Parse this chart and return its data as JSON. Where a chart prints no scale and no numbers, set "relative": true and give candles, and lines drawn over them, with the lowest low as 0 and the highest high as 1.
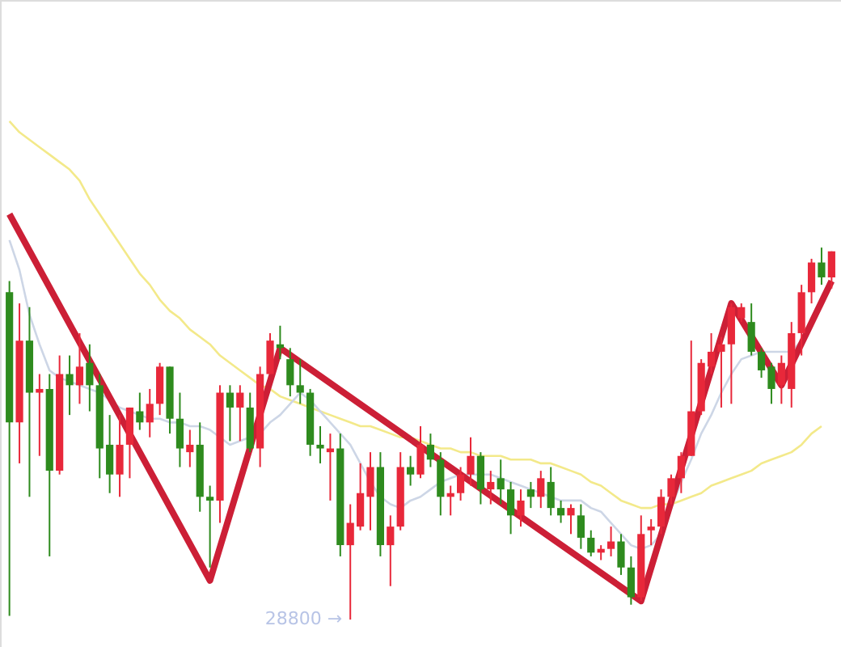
{
  "chart_data": {
    "type": "candlestick",
    "relative": true,
    "categories": [
      null,
      null,
      null,
      null,
      null,
      null,
      null,
      null,
      null,
      null,
      null,
      null,
      null,
      null,
      null,
      null,
      null,
      null,
      null,
      null,
      null,
      null,
      null,
      null,
      null,
      null,
      null,
      null,
      null,
      null,
      null,
      null,
      null,
      null,
      null,
      null,
      null,
      null,
      null,
      null,
      null,
      null,
      null,
      null,
      null,
      null,
      null,
      null,
      null,
      null,
      null,
      null,
      null,
      null,
      null,
      null,
      null,
      null,
      null,
      null,
      null,
      null,
      null,
      null,
      null,
      null,
      null,
      null,
      null,
      null,
      null,
      null,
      null,
      null,
      null,
      null,
      null,
      null,
      null,
      null,
      null,
      null,
      null
    ],
    "ohlc": [
      [
        0.88,
        0.91,
        0.01,
        0.53
      ],
      [
        0.53,
        0.85,
        0.42,
        0.75
      ],
      [
        0.75,
        0.84,
        0.33,
        0.61
      ],
      [
        0.61,
        0.66,
        0.44,
        0.62
      ],
      [
        0.62,
        0.66,
        0.17,
        0.4
      ],
      [
        0.4,
        0.71,
        0.39,
        0.66
      ],
      [
        0.66,
        0.71,
        0.55,
        0.63
      ],
      [
        0.63,
        0.77,
        0.58,
        0.68
      ],
      [
        0.69,
        0.74,
        0.56,
        0.63
      ],
      [
        0.63,
        0.66,
        0.38,
        0.46
      ],
      [
        0.47,
        0.55,
        0.34,
        0.39
      ],
      [
        0.39,
        0.55,
        0.33,
        0.47
      ],
      [
        0.47,
        0.57,
        0.38,
        0.57
      ],
      [
        0.56,
        0.61,
        0.51,
        0.53
      ],
      [
        0.53,
        0.62,
        0.49,
        0.58
      ],
      [
        0.58,
        0.69,
        0.55,
        0.68
      ],
      [
        0.68,
        0.68,
        0.5,
        0.54
      ],
      [
        0.54,
        0.61,
        0.41,
        0.46
      ],
      [
        0.45,
        0.51,
        0.41,
        0.47
      ],
      [
        0.47,
        0.53,
        0.29,
        0.33
      ],
      [
        0.33,
        0.36,
        0.14,
        0.32
      ],
      [
        0.32,
        0.63,
        0.26,
        0.61
      ],
      [
        0.61,
        0.63,
        0.48,
        0.57
      ],
      [
        0.57,
        0.63,
        0.48,
        0.61
      ],
      [
        0.57,
        0.61,
        0.45,
        0.46
      ],
      [
        0.46,
        0.68,
        0.41,
        0.66
      ],
      [
        0.66,
        0.77,
        0.66,
        0.75
      ],
      [
        0.74,
        0.79,
        0.7,
        0.73
      ],
      [
        0.7,
        0.73,
        0.6,
        0.63
      ],
      [
        0.63,
        0.7,
        0.58,
        0.61
      ],
      [
        0.61,
        0.62,
        0.44,
        0.47
      ],
      [
        0.47,
        0.52,
        0.42,
        0.46
      ],
      [
        0.45,
        0.5,
        0.32,
        0.46
      ],
      [
        0.46,
        0.5,
        0.17,
        0.2
      ],
      [
        0.2,
        0.31,
        0.0,
        0.26
      ],
      [
        0.25,
        0.42,
        0.24,
        0.34
      ],
      [
        0.33,
        0.45,
        0.24,
        0.41
      ],
      [
        0.41,
        0.45,
        0.17,
        0.2
      ],
      [
        0.2,
        0.28,
        0.09,
        0.25
      ],
      [
        0.25,
        0.45,
        0.24,
        0.41
      ],
      [
        0.41,
        0.44,
        0.36,
        0.39
      ],
      [
        0.39,
        0.52,
        0.38,
        0.47
      ],
      [
        0.47,
        0.5,
        0.41,
        0.43
      ],
      [
        0.43,
        0.45,
        0.28,
        0.33
      ],
      [
        0.33,
        0.36,
        0.28,
        0.34
      ],
      [
        0.34,
        0.41,
        0.32,
        0.39
      ],
      [
        0.39,
        0.49,
        0.36,
        0.44
      ],
      [
        0.44,
        0.45,
        0.31,
        0.35
      ],
      [
        0.35,
        0.4,
        0.31,
        0.37
      ],
      [
        0.38,
        0.43,
        0.31,
        0.35
      ],
      [
        0.35,
        0.37,
        0.23,
        0.28
      ],
      [
        0.28,
        0.35,
        0.25,
        0.32
      ],
      [
        0.35,
        0.37,
        0.3,
        0.33
      ],
      [
        0.33,
        0.4,
        0.3,
        0.38
      ],
      [
        0.37,
        0.41,
        0.28,
        0.3
      ],
      [
        0.3,
        0.32,
        0.26,
        0.28
      ],
      [
        0.28,
        0.31,
        0.23,
        0.3
      ],
      [
        0.28,
        0.31,
        0.19,
        0.22
      ],
      [
        0.22,
        0.24,
        0.17,
        0.18
      ],
      [
        0.18,
        0.2,
        0.16,
        0.19
      ],
      [
        0.19,
        0.25,
        0.17,
        0.21
      ],
      [
        0.21,
        0.23,
        0.12,
        0.14
      ],
      [
        0.14,
        0.17,
        0.04,
        0.06
      ],
      [
        0.06,
        0.28,
        0.05,
        0.23
      ],
      [
        0.24,
        0.27,
        0.2,
        0.25
      ],
      [
        0.25,
        0.35,
        0.23,
        0.33
      ],
      [
        0.33,
        0.39,
        0.31,
        0.38
      ],
      [
        0.38,
        0.45,
        0.34,
        0.44
      ],
      [
        0.44,
        0.75,
        0.44,
        0.56
      ],
      [
        0.56,
        0.7,
        0.55,
        0.69
      ],
      [
        0.68,
        0.77,
        0.66,
        0.72
      ],
      [
        0.72,
        0.76,
        0.57,
        0.74
      ],
      [
        0.74,
        0.85,
        0.58,
        0.84
      ],
      [
        0.81,
        0.85,
        0.8,
        0.84
      ],
      [
        0.8,
        0.85,
        0.71,
        0.72
      ],
      [
        0.72,
        0.73,
        0.65,
        0.67
      ],
      [
        0.68,
        0.69,
        0.58,
        0.62
      ],
      [
        0.63,
        0.71,
        0.58,
        0.69
      ],
      [
        0.62,
        0.8,
        0.57,
        0.77
      ],
      [
        0.77,
        0.9,
        0.71,
        0.88
      ],
      [
        0.88,
        0.97,
        0.85,
        0.96
      ],
      [
        0.96,
        1.0,
        0.9,
        0.92
      ],
      [
        0.92,
        0.99,
        0.89,
        0.99
      ]
    ],
    "colors": [
      "#2e8b1e",
      "#e8283a",
      "#2e8b1e",
      "#e8283a",
      "#2e8b1e",
      "#e8283a",
      "#2e8b1e",
      "#e8283a",
      "#2e8b1e",
      "#2e8b1e",
      "#2e8b1e",
      "#e8283a",
      "#e8283a",
      "#2e8b1e",
      "#e8283a",
      "#e8283a",
      "#2e8b1e",
      "#2e8b1e",
      "#e8283a",
      "#2e8b1e",
      "#2e8b1e",
      "#e8283a",
      "#2e8b1e",
      "#e8283a",
      "#2e8b1e",
      "#e8283a",
      "#e8283a",
      "#2e8b1e",
      "#2e8b1e",
      "#2e8b1e",
      "#2e8b1e",
      "#2e8b1e",
      "#e8283a",
      "#2e8b1e",
      "#e8283a",
      "#e8283a",
      "#e8283a",
      "#2e8b1e",
      "#e8283a",
      "#e8283a",
      "#2e8b1e",
      "#e8283a",
      "#2e8b1e",
      "#2e8b1e",
      "#e8283a",
      "#e8283a",
      "#e8283a",
      "#2e8b1e",
      "#e8283a",
      "#2e8b1e",
      "#2e8b1e",
      "#e8283a",
      "#2e8b1e",
      "#e8283a",
      "#2e8b1e",
      "#2e8b1e",
      "#e8283a",
      "#2e8b1e",
      "#2e8b1e",
      "#e8283a",
      "#e8283a",
      "#2e8b1e",
      "#2e8b1e",
      "#e8283a",
      "#e8283a",
      "#e8283a",
      "#e8283a",
      "#e8283a",
      "#e8283a",
      "#e8283a",
      "#e8283a",
      "#e8283a",
      "#e8283a",
      "#e8283a",
      "#2e8b1e",
      "#2e8b1e",
      "#2e8b1e",
      "#e8283a",
      "#e8283a",
      "#e8283a",
      "#e8283a",
      "#2e8b1e",
      "#e8283a"
    ],
    "series": [
      {
        "type": "line",
        "color": "#f3e98a",
        "values": [
          1.34,
          1.31,
          1.29,
          1.27,
          1.25,
          1.23,
          1.21,
          1.18,
          1.13,
          1.09,
          1.05,
          1.01,
          0.97,
          0.93,
          0.9,
          0.86,
          0.83,
          0.81,
          0.78,
          0.76,
          0.74,
          0.71,
          0.69,
          0.67,
          0.65,
          0.63,
          0.62,
          0.6,
          0.59,
          0.58,
          0.57,
          0.56,
          0.55,
          0.54,
          0.53,
          0.52,
          0.52,
          0.51,
          0.5,
          0.49,
          0.49,
          0.48,
          0.47,
          0.46,
          0.46,
          0.45,
          0.45,
          0.44,
          0.44,
          0.44,
          0.43,
          0.43,
          0.43,
          0.42,
          0.42,
          0.41,
          0.4,
          0.39,
          0.37,
          0.36,
          0.34,
          0.32,
          0.31,
          0.3,
          0.3,
          0.31,
          0.31,
          0.32,
          0.33,
          0.34,
          0.36,
          0.37,
          0.38,
          0.39,
          0.4,
          0.42,
          0.43,
          0.44,
          0.45,
          0.47,
          0.5,
          0.52,
          null
        ]
      },
      {
        "type": "line",
        "color": "#cdd6e6",
        "values": [
          1.02,
          0.94,
          0.82,
          0.74,
          0.67,
          0.65,
          0.64,
          0.63,
          0.62,
          0.61,
          0.59,
          0.57,
          0.56,
          0.55,
          0.54,
          0.54,
          0.53,
          0.53,
          0.52,
          0.52,
          0.51,
          0.49,
          0.47,
          0.48,
          0.49,
          0.5,
          0.53,
          0.55,
          0.58,
          0.61,
          0.59,
          0.56,
          0.53,
          0.5,
          0.47,
          0.42,
          0.37,
          0.33,
          0.31,
          0.3,
          0.32,
          0.33,
          0.35,
          0.37,
          0.38,
          0.39,
          0.39,
          0.39,
          0.39,
          0.38,
          0.37,
          0.36,
          0.35,
          0.34,
          0.33,
          0.32,
          0.32,
          0.32,
          0.3,
          0.29,
          0.26,
          0.23,
          0.2,
          0.19,
          0.2,
          0.23,
          0.3,
          0.37,
          0.43,
          0.5,
          0.55,
          0.61,
          0.66,
          0.7,
          0.71,
          0.72,
          0.72,
          0.72,
          0.72,
          0.75,
          null,
          null,
          null
        ]
      },
      {
        "type": "line",
        "color": "#cc1f36",
        "values": [
          1.09,
          null,
          null,
          null,
          null,
          null,
          null,
          null,
          null,
          null,
          null,
          null,
          null,
          null,
          null,
          null,
          null,
          null,
          null,
          null,
          0.105,
          null,
          null,
          null,
          null,
          null,
          null,
          0.73,
          null,
          null,
          null,
          null,
          null,
          null,
          null,
          null,
          null,
          null,
          null,
          null,
          null,
          null,
          null,
          null,
          null,
          null,
          null,
          null,
          null,
          null,
          null,
          null,
          null,
          null,
          null,
          null,
          null,
          null,
          null,
          null,
          null,
          null,
          null,
          0.05,
          null,
          null,
          null,
          null,
          null,
          null,
          null,
          null,
          0.85,
          null,
          null,
          null,
          null,
          0.63,
          null,
          null,
          null,
          null,
          0.91
        ]
      }
    ],
    "annotations": [
      "28800 →"
    ]
  }
}
